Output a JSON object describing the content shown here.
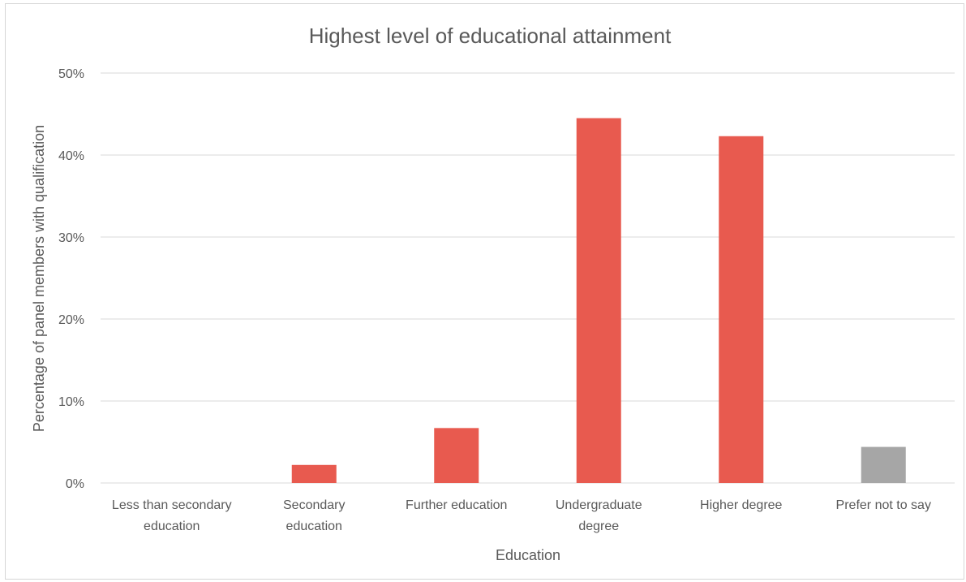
{
  "chart_data": {
    "type": "bar",
    "title": "Highest level of educational attainment",
    "xlabel": "Education",
    "ylabel": "Percentage of panel members with qualification",
    "ylim": [
      0,
      50
    ],
    "yticks": [
      "0%",
      "10%",
      "20%",
      "30%",
      "40%",
      "50%"
    ],
    "grid": true,
    "categories": [
      [
        "Less than secondary",
        "education"
      ],
      [
        "Secondary",
        "education"
      ],
      [
        "Further education"
      ],
      [
        "Undergraduate",
        "degree"
      ],
      [
        "Higher degree"
      ],
      [
        "Prefer not to say"
      ]
    ],
    "values": [
      0,
      2.2,
      6.7,
      44.5,
      42.3,
      4.4
    ],
    "colors": [
      "#E85A4F",
      "#E85A4F",
      "#E85A4F",
      "#E85A4F",
      "#E85A4F",
      "#A6A6A6"
    ],
    "gridline_color": "#D9D9D9",
    "text_color": "#595959"
  }
}
